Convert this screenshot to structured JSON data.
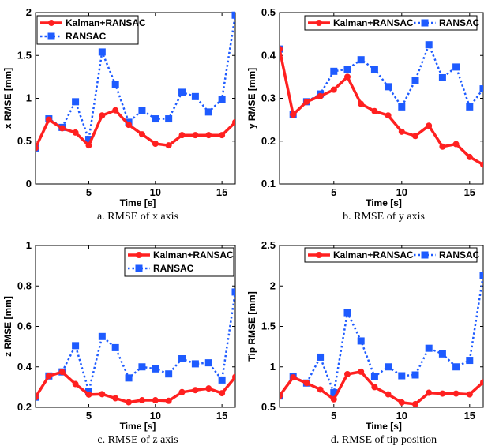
{
  "colors": {
    "kalman": "#ff2020",
    "ransac": "#1e5bff",
    "axis": "#000000"
  },
  "chart_data": [
    {
      "type": "line",
      "caption": "a. RMSE  of x axis",
      "xlabel": "Time [s]",
      "ylabel": "x RMSE [mm]",
      "xlim": [
        1,
        16
      ],
      "ylim": [
        0,
        2
      ],
      "xticks": [
        5,
        10,
        15
      ],
      "xtick_labels": [
        "5",
        "10",
        "15"
      ],
      "yticks": [
        0,
        0.5,
        1,
        1.5,
        2
      ],
      "ytick_labels": [
        "0",
        "0.5",
        "1",
        "1.5",
        "2"
      ],
      "legend_position": "top-left",
      "legend_layout": "vertical",
      "x": [
        1,
        2,
        3,
        4,
        5,
        6,
        7,
        8,
        9,
        10,
        11,
        12,
        13,
        14,
        15,
        16
      ],
      "series": [
        {
          "name": "Kalman+RANSAC",
          "values": [
            0.42,
            0.75,
            0.65,
            0.6,
            0.45,
            0.8,
            0.86,
            0.69,
            0.58,
            0.47,
            0.45,
            0.57,
            0.57,
            0.57,
            0.57,
            0.72
          ]
        },
        {
          "name": "RANSAC",
          "values": [
            0.42,
            0.76,
            0.66,
            0.96,
            0.52,
            1.54,
            1.16,
            0.72,
            0.86,
            0.76,
            0.76,
            1.07,
            1.02,
            0.84,
            0.99,
            1.97
          ]
        }
      ]
    },
    {
      "type": "line",
      "caption": "b. RMSE  of y axis",
      "xlabel": "Time [s]",
      "ylabel": "y RMSE [mm]",
      "xlim": [
        1,
        16
      ],
      "ylim": [
        0.1,
        0.5
      ],
      "xticks": [
        5,
        10,
        15
      ],
      "xtick_labels": [
        "5",
        "10",
        "15"
      ],
      "yticks": [
        0.1,
        0.2,
        0.3,
        0.4,
        0.5
      ],
      "ytick_labels": [
        "0.1",
        "0.2",
        "0.3",
        "0.4",
        "0.5"
      ],
      "legend_position": "top",
      "legend_layout": "horizontal",
      "x": [
        1,
        2,
        3,
        4,
        5,
        6,
        7,
        8,
        9,
        10,
        11,
        12,
        13,
        14,
        15,
        16
      ],
      "series": [
        {
          "name": "Kalman+RANSAC",
          "values": [
            0.415,
            0.262,
            0.292,
            0.305,
            0.32,
            0.35,
            0.287,
            0.27,
            0.26,
            0.222,
            0.212,
            0.236,
            0.187,
            0.193,
            0.163,
            0.145
          ]
        },
        {
          "name": "RANSAC",
          "values": [
            0.415,
            0.262,
            0.292,
            0.31,
            0.363,
            0.368,
            0.39,
            0.368,
            0.327,
            0.28,
            0.342,
            0.425,
            0.348,
            0.373,
            0.28,
            0.322
          ]
        }
      ]
    },
    {
      "type": "line",
      "caption": "c. RMSE  of z axis",
      "xlabel": "Time [s]",
      "ylabel": "z RMSE [mm]",
      "xlim": [
        1,
        16
      ],
      "ylim": [
        0.2,
        1
      ],
      "xticks": [
        5,
        10,
        15
      ],
      "xtick_labels": [
        "5",
        "10",
        "15"
      ],
      "yticks": [
        0.2,
        0.4,
        0.6,
        0.8,
        1
      ],
      "ytick_labels": [
        "0.2",
        "0.4",
        "0.6",
        "0.8",
        "1"
      ],
      "legend_position": "top-right",
      "legend_layout": "vertical",
      "x": [
        1,
        2,
        3,
        4,
        5,
        6,
        7,
        8,
        9,
        10,
        11,
        12,
        13,
        14,
        15,
        16
      ],
      "series": [
        {
          "name": "Kalman+RANSAC",
          "values": [
            0.25,
            0.355,
            0.375,
            0.315,
            0.263,
            0.265,
            0.245,
            0.225,
            0.235,
            0.235,
            0.232,
            0.275,
            0.285,
            0.293,
            0.27,
            0.35
          ]
        },
        {
          "name": "RANSAC",
          "values": [
            0.25,
            0.355,
            0.375,
            0.505,
            0.28,
            0.55,
            0.495,
            0.345,
            0.4,
            0.39,
            0.365,
            0.44,
            0.415,
            0.42,
            0.335,
            0.77
          ]
        }
      ]
    },
    {
      "type": "line",
      "caption": "d. RMSE  of tip position",
      "xlabel": "Time [s]",
      "ylabel": "Tip RMSE [mm]",
      "xlim": [
        1,
        16
      ],
      "ylim": [
        0.5,
        2.5
      ],
      "xticks": [
        5,
        10,
        15
      ],
      "xtick_labels": [
        "5",
        "10",
        "15"
      ],
      "yticks": [
        0.5,
        1,
        1.5,
        2,
        2.5
      ],
      "ytick_labels": [
        "0.5",
        "1",
        "1.5",
        "2",
        "2.5"
      ],
      "legend_position": "top",
      "legend_layout": "horizontal",
      "x": [
        1,
        2,
        3,
        4,
        5,
        6,
        7,
        8,
        9,
        10,
        11,
        12,
        13,
        14,
        15,
        16
      ],
      "series": [
        {
          "name": "Kalman+RANSAC",
          "values": [
            0.64,
            0.87,
            0.8,
            0.72,
            0.6,
            0.91,
            0.94,
            0.75,
            0.66,
            0.56,
            0.54,
            0.68,
            0.67,
            0.67,
            0.66,
            0.81
          ]
        },
        {
          "name": "RANSAC",
          "values": [
            0.64,
            0.88,
            0.8,
            1.12,
            0.68,
            1.67,
            1.32,
            0.88,
            1.0,
            0.89,
            0.9,
            1.23,
            1.16,
            1.0,
            1.08,
            2.13
          ]
        }
      ]
    }
  ]
}
